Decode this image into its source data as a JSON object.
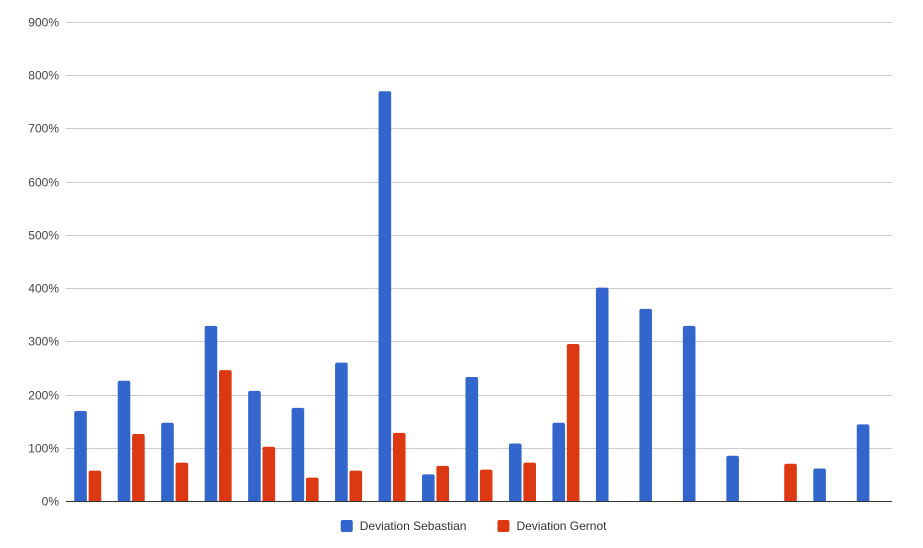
{
  "chart_data": {
    "type": "bar",
    "title": "",
    "xlabel": "",
    "ylabel": "",
    "ylim": [
      0,
      900
    ],
    "y_unit": "%",
    "y_ticks": [
      "0%",
      "100%",
      "200%",
      "300%",
      "400%",
      "500%",
      "600%",
      "700%",
      "800%",
      "900%"
    ],
    "y_tick_values": [
      0,
      100,
      200,
      300,
      400,
      500,
      600,
      700,
      800,
      900
    ],
    "grid": true,
    "legend_position": "bottom",
    "categories": [
      "",
      "",
      "",
      "",
      "",
      "",
      "",
      "",
      "",
      "",
      "",
      "",
      "",
      "",
      "",
      "",
      "",
      "",
      ""
    ],
    "series": [
      {
        "name": "Deviation Sebastian",
        "color": "#3366cc",
        "values": [
          169,
          226,
          147,
          329,
          207,
          175,
          260,
          770,
          50,
          233,
          108,
          147,
          401,
          361,
          329,
          85,
          null,
          61,
          144
        ]
      },
      {
        "name": "Deviation Gernot",
        "color": "#dc3912",
        "values": [
          57,
          126,
          72,
          246,
          102,
          44,
          57,
          128,
          66,
          59,
          72,
          295,
          null,
          null,
          null,
          null,
          70,
          null,
          null
        ]
      }
    ]
  }
}
